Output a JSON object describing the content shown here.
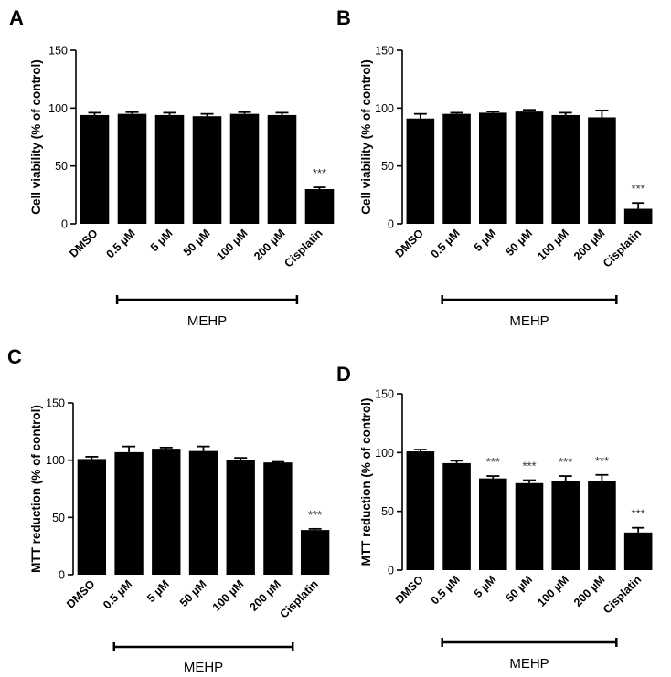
{
  "figure": {
    "group_label": "MEHP",
    "categories": [
      "DMSO",
      "0.5 µM",
      "5 µM",
      "50 µM",
      "100 µM",
      "200 µM",
      "Cisplatin"
    ]
  },
  "chart_data": [
    {
      "panel": "A",
      "type": "bar",
      "ylabel": "Cell viability (% of control)",
      "ylim": [
        0,
        150
      ],
      "yticks": [
        0,
        50,
        100,
        150
      ],
      "categories": [
        "DMSO",
        "0.5 µM",
        "5 µM",
        "50 µM",
        "100 µM",
        "200 µM",
        "Cisplatin"
      ],
      "values": [
        94,
        95,
        94,
        93,
        95,
        94,
        30
      ],
      "errors": [
        2,
        1.5,
        2,
        2,
        1.5,
        2,
        1.5
      ],
      "annotations": [
        "",
        "",
        "",
        "",
        "",
        "",
        "***"
      ],
      "group_label": "MEHP"
    },
    {
      "panel": "B",
      "type": "bar",
      "ylabel": "Cell viability (% of control)",
      "ylim": [
        0,
        150
      ],
      "yticks": [
        0,
        50,
        100,
        150
      ],
      "categories": [
        "DMSO",
        "0.5 µM",
        "5 µM",
        "50 µM",
        "100 µM",
        "200 µM",
        "Cisplatin"
      ],
      "values": [
        91,
        95,
        96,
        97,
        94,
        92,
        13
      ],
      "errors": [
        4,
        1,
        1,
        1.5,
        2,
        6,
        5
      ],
      "annotations": [
        "",
        "",
        "",
        "",
        "",
        "",
        "***"
      ],
      "group_label": "MEHP"
    },
    {
      "panel": "C",
      "type": "bar",
      "ylabel": "MTT reduction (% of control)",
      "ylim": [
        0,
        150
      ],
      "yticks": [
        0,
        50,
        100,
        150
      ],
      "categories": [
        "DMSO",
        "0.5 µM",
        "5 µM",
        "50 µM",
        "100 µM",
        "200 µM",
        "Cisplatin"
      ],
      "values": [
        101,
        107,
        110,
        108,
        100,
        98,
        39
      ],
      "errors": [
        2,
        5,
        1,
        4,
        2,
        0.5,
        1
      ],
      "annotations": [
        "",
        "",
        "",
        "",
        "",
        "",
        "***"
      ],
      "group_label": "MEHP"
    },
    {
      "panel": "D",
      "type": "bar",
      "ylabel": "MTT reduction (% of control)",
      "ylim": [
        0,
        150
      ],
      "yticks": [
        0,
        50,
        100,
        150
      ],
      "categories": [
        "DMSO",
        "0.5 µM",
        "5 µM",
        "50 µM",
        "100 µM",
        "200 µM",
        "Cisplatin"
      ],
      "values": [
        101,
        91,
        78,
        74,
        76,
        76,
        32
      ],
      "errors": [
        1.5,
        2,
        2,
        2.5,
        4,
        5,
        4
      ],
      "annotations": [
        "",
        "",
        "***",
        "***",
        "***",
        "***",
        "***"
      ],
      "group_label": "MEHP"
    }
  ]
}
